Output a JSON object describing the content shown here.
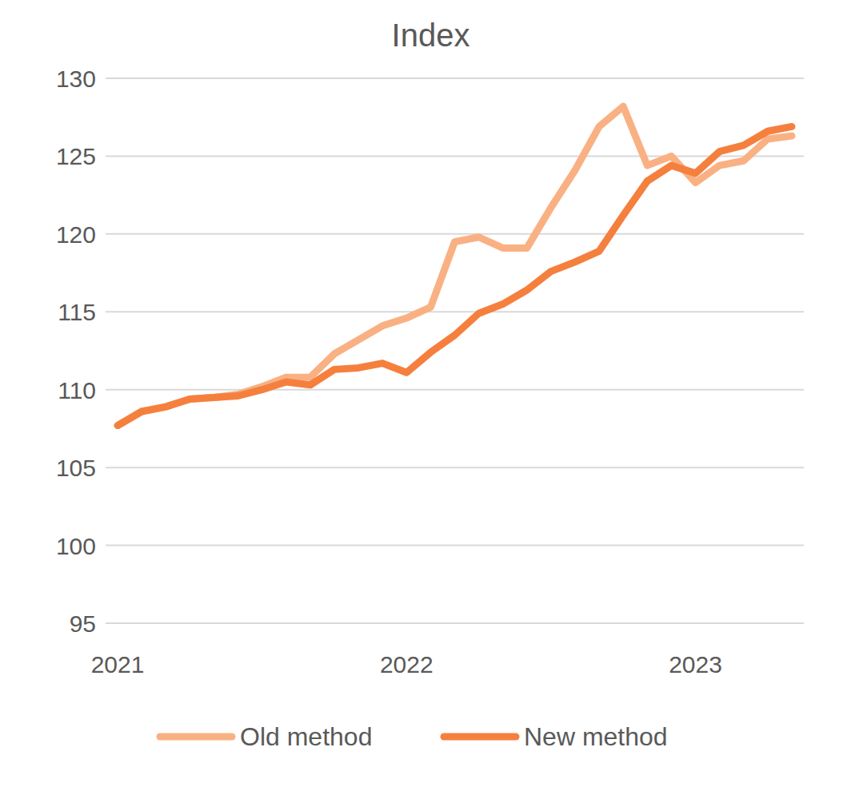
{
  "chart_data": {
    "type": "line",
    "title": "Index",
    "categories": [
      "2021",
      null,
      null,
      null,
      null,
      null,
      null,
      null,
      null,
      null,
      null,
      null,
      "2022",
      null,
      null,
      null,
      null,
      null,
      null,
      null,
      null,
      null,
      null,
      null,
      "2023",
      null,
      null,
      null,
      null
    ],
    "series": [
      {
        "name": "Old method",
        "color": "#f9b183",
        "values": [
          107.7,
          108.6,
          108.9,
          109.4,
          109.5,
          109.7,
          110.2,
          110.8,
          110.8,
          112.3,
          113.2,
          114.1,
          114.6,
          115.3,
          119.5,
          119.8,
          119.1,
          119.1,
          121.7,
          124.1,
          126.9,
          128.2,
          124.4,
          125.0,
          123.3,
          124.4,
          124.7,
          126.1,
          126.3
        ]
      },
      {
        "name": "New method",
        "color": "#f5803e",
        "values": [
          107.7,
          108.6,
          108.9,
          109.4,
          109.5,
          109.6,
          110.0,
          110.5,
          110.3,
          111.3,
          111.4,
          111.7,
          111.1,
          112.4,
          113.5,
          114.9,
          115.5,
          116.4,
          117.6,
          118.2,
          118.9,
          121.2,
          123.4,
          124.4,
          123.9,
          125.3,
          125.7,
          126.6,
          126.9
        ]
      }
    ],
    "ylim": [
      95,
      130
    ],
    "yticks": [
      95,
      100,
      105,
      110,
      115,
      120,
      125,
      130
    ],
    "grid": true,
    "legend": "bottom"
  }
}
